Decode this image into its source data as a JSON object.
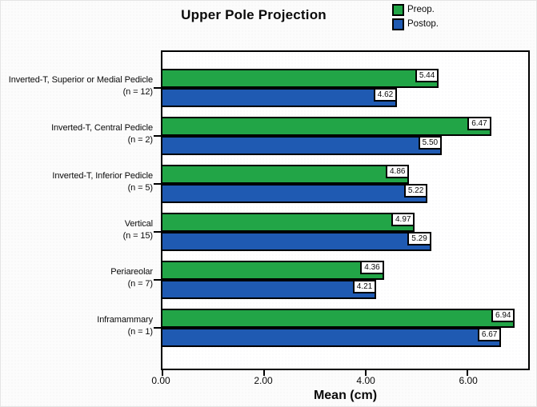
{
  "figure": {
    "title": "Upper Pole Projection",
    "xlabel": "Mean (cm)"
  },
  "legend": {
    "items": [
      {
        "label": "Preop.",
        "color": "#22A547"
      },
      {
        "label": "Postop.",
        "color": "#1F5AB2"
      }
    ]
  },
  "axis": {
    "x_ticks": [
      {
        "value": 0,
        "label": "0.00"
      },
      {
        "value": 2,
        "label": "2.00"
      },
      {
        "value": 4,
        "label": "4.00"
      },
      {
        "value": 6,
        "label": "6.00"
      }
    ],
    "x_max": 7.2
  },
  "chart_data": {
    "type": "bar",
    "orientation": "horizontal",
    "title": "Upper Pole Projection",
    "xlabel": "Mean (cm)",
    "xlim": [
      0,
      7.2
    ],
    "grid": false,
    "legend_position": "top-right",
    "categories": [
      "Inverted-T, Superior or Medial Pedicle (n = 12)",
      "Inverted-T, Central Pedicle (n = 2)",
      "Inverted-T, Inferior Pedicle (n = 5)",
      "Vertical (n = 15)",
      "Periareolar (n = 7)",
      "Inframammary (n = 1)"
    ],
    "series": [
      {
        "name": "Preop.",
        "color": "#22A547",
        "values": [
          5.44,
          6.47,
          4.86,
          4.97,
          4.36,
          6.94
        ]
      },
      {
        "name": "Postop.",
        "color": "#1F5AB2",
        "values": [
          4.62,
          5.5,
          5.22,
          5.29,
          4.21,
          6.67
        ]
      }
    ],
    "groups": [
      {
        "name": "Inverted-T, Superior or Medial Pedicle",
        "n_label": "(n = 12)",
        "preop": "5.44",
        "postop": "4.62"
      },
      {
        "name": "Inverted-T, Central Pedicle",
        "n_label": "(n = 2)",
        "preop": "6.47",
        "postop": "5.50"
      },
      {
        "name": "Inverted-T, Inferior Pedicle",
        "n_label": "(n = 5)",
        "preop": "4.86",
        "postop": "5.22"
      },
      {
        "name": "Vertical",
        "n_label": "(n = 15)",
        "preop": "4.97",
        "postop": "5.29"
      },
      {
        "name": "Periareolar",
        "n_label": "(n = 7)",
        "preop": "4.36",
        "postop": "4.21"
      },
      {
        "name": "Inframammary",
        "n_label": "(n = 1)",
        "preop": "6.94",
        "postop": "6.67"
      }
    ]
  }
}
